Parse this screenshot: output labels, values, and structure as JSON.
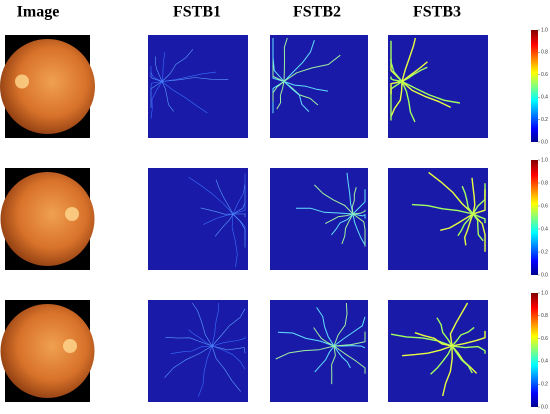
{
  "columns": [
    "Image",
    "FSTB1",
    "FSTB2",
    "FSTB3"
  ],
  "colorbar": {
    "range": [
      0,
      1
    ],
    "ticks": [
      {
        "value": 0,
        "label": "0.0"
      },
      {
        "value": 0.2,
        "label": "0.2"
      },
      {
        "value": 0.4,
        "label": "0.4"
      },
      {
        "value": 0.6,
        "label": "0.6"
      },
      {
        "value": 0.8,
        "label": "0.8"
      },
      {
        "value": 1,
        "label": "1.0"
      }
    ]
  }
}
